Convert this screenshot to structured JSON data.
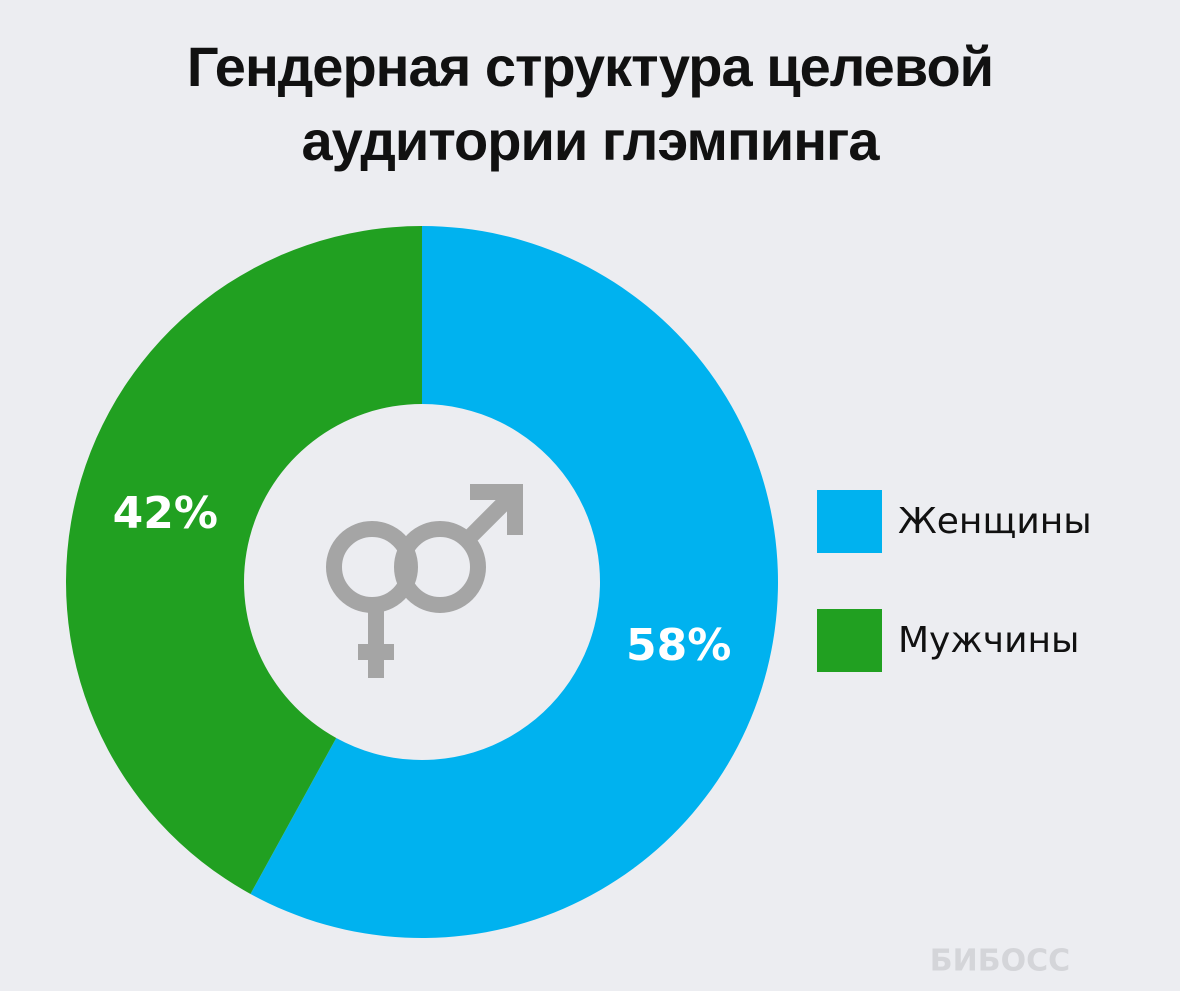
{
  "chart_data": {
    "type": "donut",
    "title": "Гендерная структура целевой аудитории глэмпинга",
    "categories": [
      "Женщины",
      "Мужчины"
    ],
    "values": [
      58,
      42
    ],
    "value_labels": [
      "58%",
      "42%"
    ],
    "colors": [
      "#00b2ef",
      "#21a021"
    ],
    "legend": "right",
    "watermark": "БИБОСС"
  }
}
